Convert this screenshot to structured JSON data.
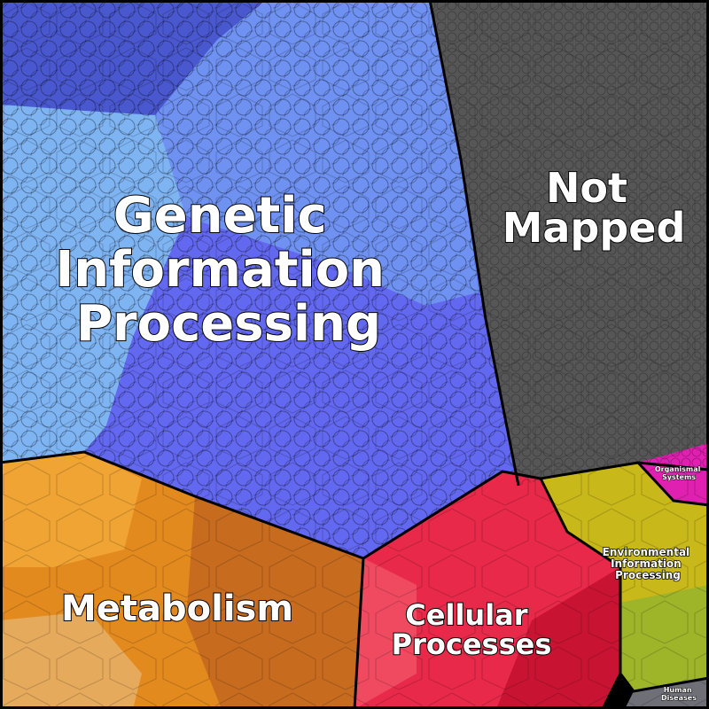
{
  "regions": [
    {
      "id": "genetic",
      "label_lines": [
        "Genetic",
        "Information",
        "Processing"
      ],
      "color": "#5b7ff2"
    },
    {
      "id": "not_mapped",
      "label_lines": [
        "Not",
        "Mapped"
      ],
      "color": "#565656"
    },
    {
      "id": "metabolism",
      "label_lines": [
        "Metabolism"
      ],
      "color": "#e38a1f"
    },
    {
      "id": "cellular",
      "label_lines": [
        "Cellular",
        "Processes"
      ],
      "color": "#e8294a"
    },
    {
      "id": "environmental",
      "label_lines": [
        "Environmental",
        "Information",
        "Processing"
      ],
      "color": "#c8b81a"
    },
    {
      "id": "organismal",
      "label_lines": [
        "Organismal",
        "Systems"
      ],
      "color": "#e020b0"
    },
    {
      "id": "human",
      "label_lines": [
        "Human",
        "Diseases"
      ],
      "color": "#6f6f78"
    }
  ]
}
